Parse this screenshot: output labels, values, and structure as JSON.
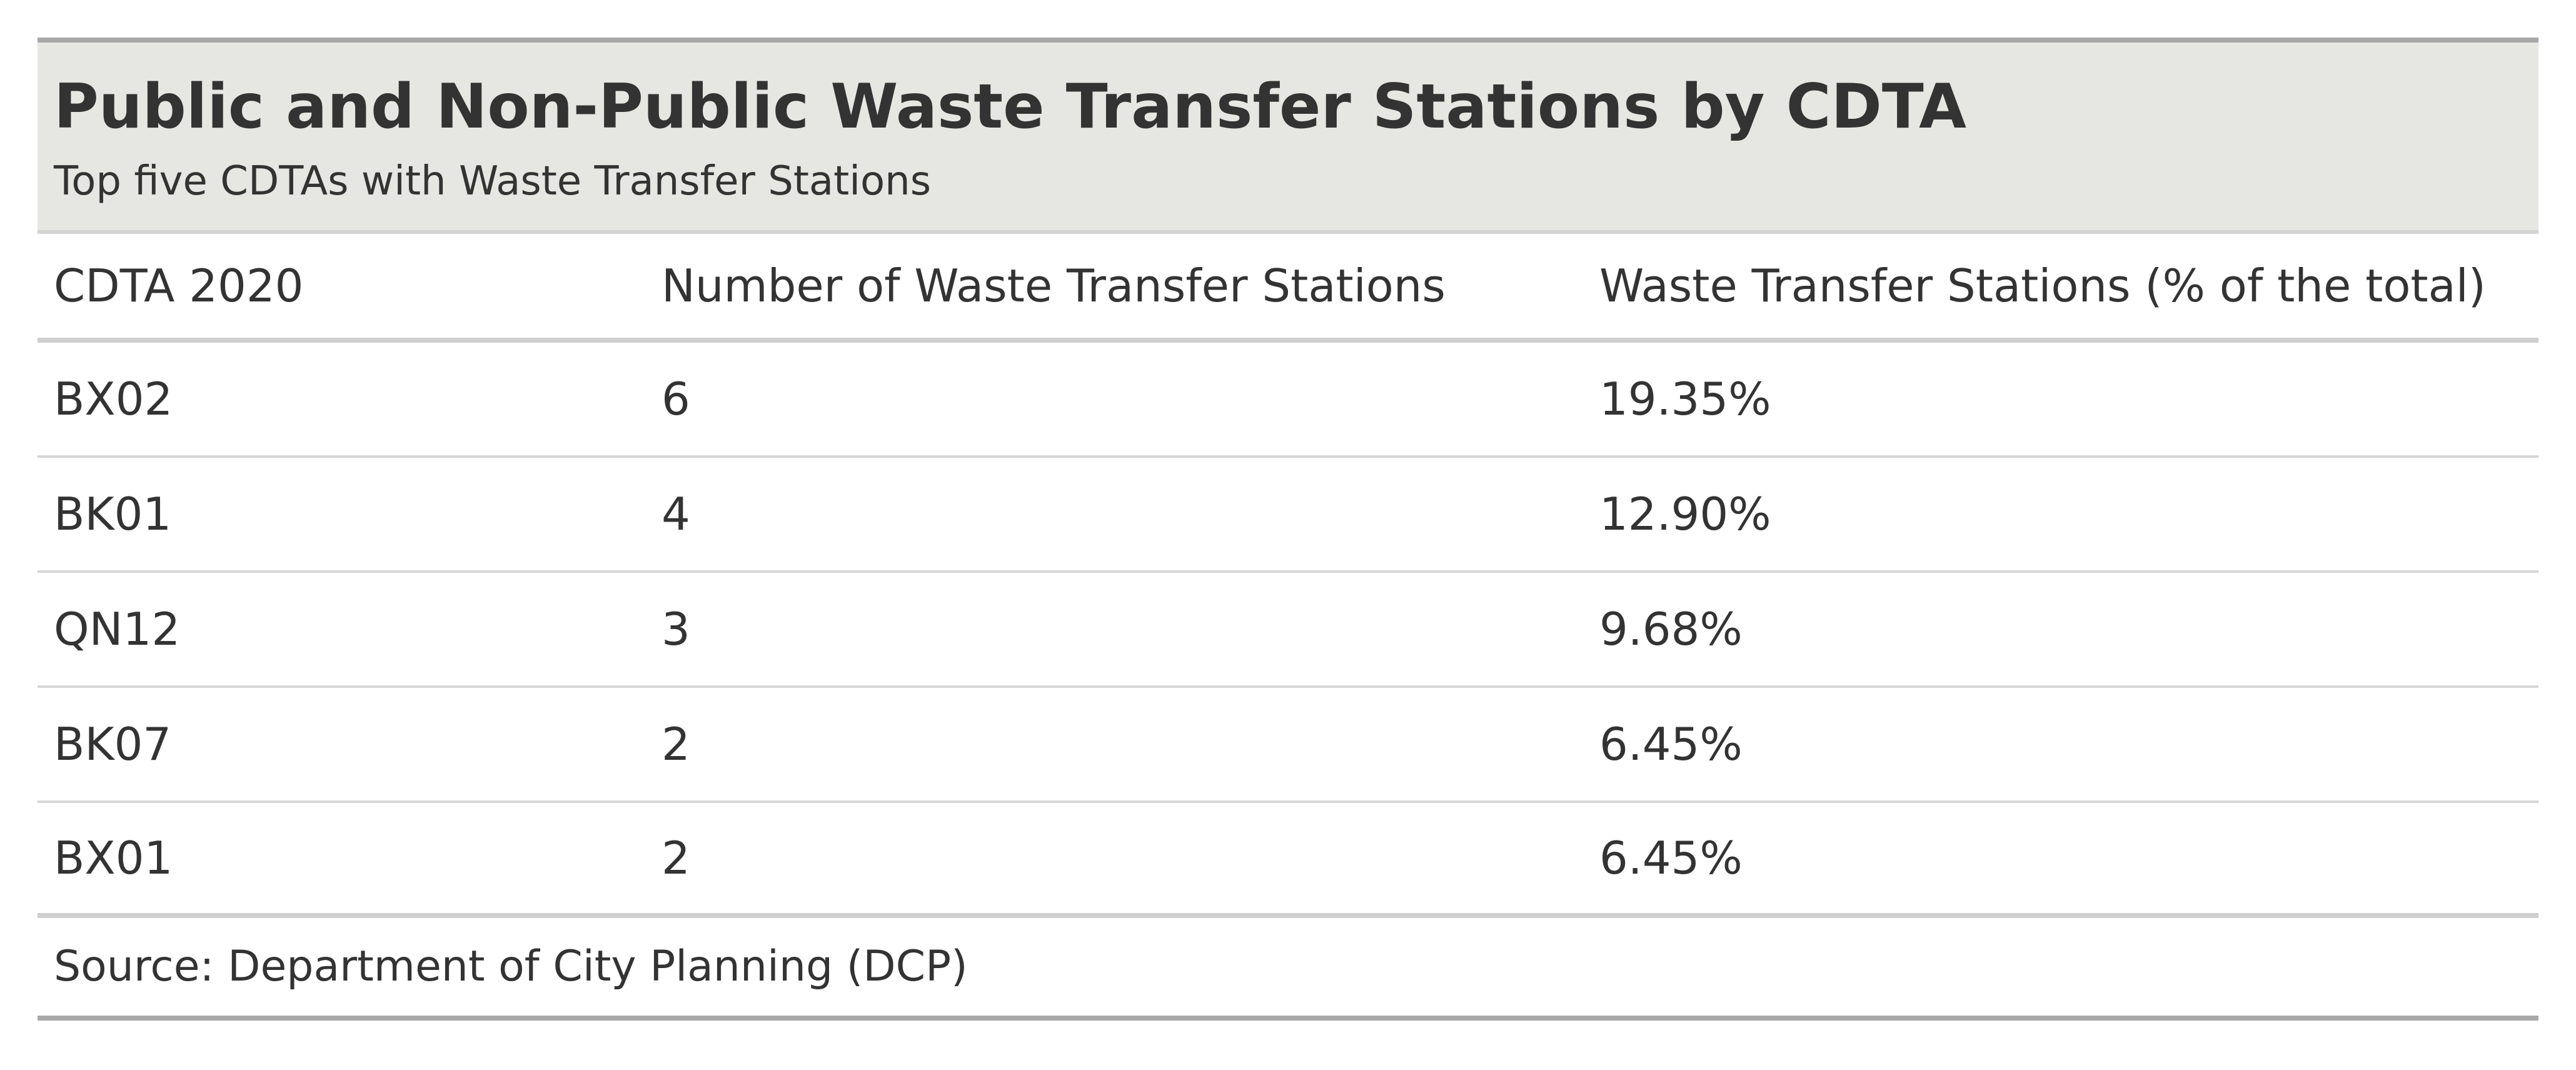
{
  "chart_data": {
    "type": "table",
    "title": "Public and Non-Public Waste Transfer Stations by CDTA",
    "subtitle": "Top five CDTAs with Waste Transfer Stations",
    "columns": [
      "CDTA 2020",
      "Number of Waste Transfer Stations",
      "Waste Transfer Stations (% of the total)"
    ],
    "rows": [
      [
        "BX02",
        "6",
        "19.35%"
      ],
      [
        "BK01",
        "4",
        "12.90%"
      ],
      [
        "QN12",
        "3",
        "9.68%"
      ],
      [
        "BK07",
        "2",
        "6.45%"
      ],
      [
        "BX01",
        "2",
        "6.45%"
      ]
    ],
    "source": "Source: Department of City Planning (DCP)"
  }
}
